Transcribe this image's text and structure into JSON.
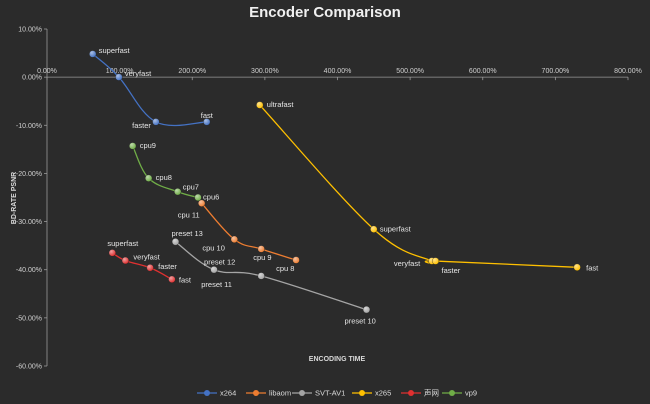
{
  "chart_data": {
    "type": "scatter",
    "title": "Encoder Comparison",
    "xlabel": "ENCODING TIME",
    "ylabel": "BD-RATE PSNR",
    "xlim": [
      0,
      8
    ],
    "ylim": [
      -0.6,
      0.1
    ],
    "x_ticks": [
      "0.00%",
      "100.00%",
      "200.00%",
      "300.00%",
      "400.00%",
      "500.00%",
      "600.00%",
      "700.00%",
      "800.00%"
    ],
    "y_ticks": [
      "10.00%",
      "0.00%",
      "-10.00%",
      "-20.00%",
      "-30.00%",
      "-40.00%",
      "-50.00%",
      "-60.00%"
    ],
    "grid": false,
    "legend_position": "bottom",
    "series": [
      {
        "name": "x264",
        "color": "#4472c4",
        "points": [
          {
            "x": 0.63,
            "y": 0.048,
            "label": "superfast"
          },
          {
            "x": 0.99,
            "y": 0.0,
            "label": "veryfast"
          },
          {
            "x": 1.5,
            "y": -0.093,
            "label": "faster"
          },
          {
            "x": 2.2,
            "y": -0.093,
            "label": "fast"
          }
        ]
      },
      {
        "name": "libaom",
        "color": "#ed7d31",
        "points": [
          {
            "x": 2.13,
            "y": -0.262,
            "label": "cpu 11"
          },
          {
            "x": 2.58,
            "y": -0.337,
            "label": "cpu 10"
          },
          {
            "x": 2.95,
            "y": -0.357,
            "label": "cpu 9"
          },
          {
            "x": 3.43,
            "y": -0.38,
            "label": "cpu 8"
          }
        ]
      },
      {
        "name": "SVT-AV1",
        "color": "#a5a5a5",
        "points": [
          {
            "x": 1.77,
            "y": -0.342,
            "label": "preset 13"
          },
          {
            "x": 2.3,
            "y": -0.4,
            "label": "preset 12"
          },
          {
            "x": 2.95,
            "y": -0.413,
            "label": "preset 11"
          },
          {
            "x": 4.4,
            "y": -0.483,
            "label": "preset 10"
          }
        ]
      },
      {
        "name": "x265",
        "color": "#ffc000",
        "points": [
          {
            "x": 2.93,
            "y": -0.058,
            "label": "ultrafast"
          },
          {
            "x": 4.5,
            "y": -0.316,
            "label": "superfast"
          },
          {
            "x": 5.3,
            "y": -0.382,
            "label": "veryfast"
          },
          {
            "x": 5.35,
            "y": -0.382,
            "label": "faster"
          },
          {
            "x": 7.3,
            "y": -0.395,
            "label": "fast"
          }
        ]
      },
      {
        "name": "声网",
        "color": "#e03030",
        "points": [
          {
            "x": 0.9,
            "y": -0.365,
            "label": "superfast"
          },
          {
            "x": 1.08,
            "y": -0.381,
            "label": "veryfast"
          },
          {
            "x": 1.42,
            "y": -0.396,
            "label": "faster"
          },
          {
            "x": 1.72,
            "y": -0.42,
            "label": "fast"
          }
        ]
      },
      {
        "name": "vp9",
        "color": "#70ad47",
        "points": [
          {
            "x": 1.18,
            "y": -0.143,
            "label": "cpu9"
          },
          {
            "x": 1.4,
            "y": -0.21,
            "label": "cpu8"
          },
          {
            "x": 1.8,
            "y": -0.238,
            "label": "cpu7"
          },
          {
            "x": 2.08,
            "y": -0.25,
            "label": "cpu6"
          }
        ]
      }
    ]
  }
}
